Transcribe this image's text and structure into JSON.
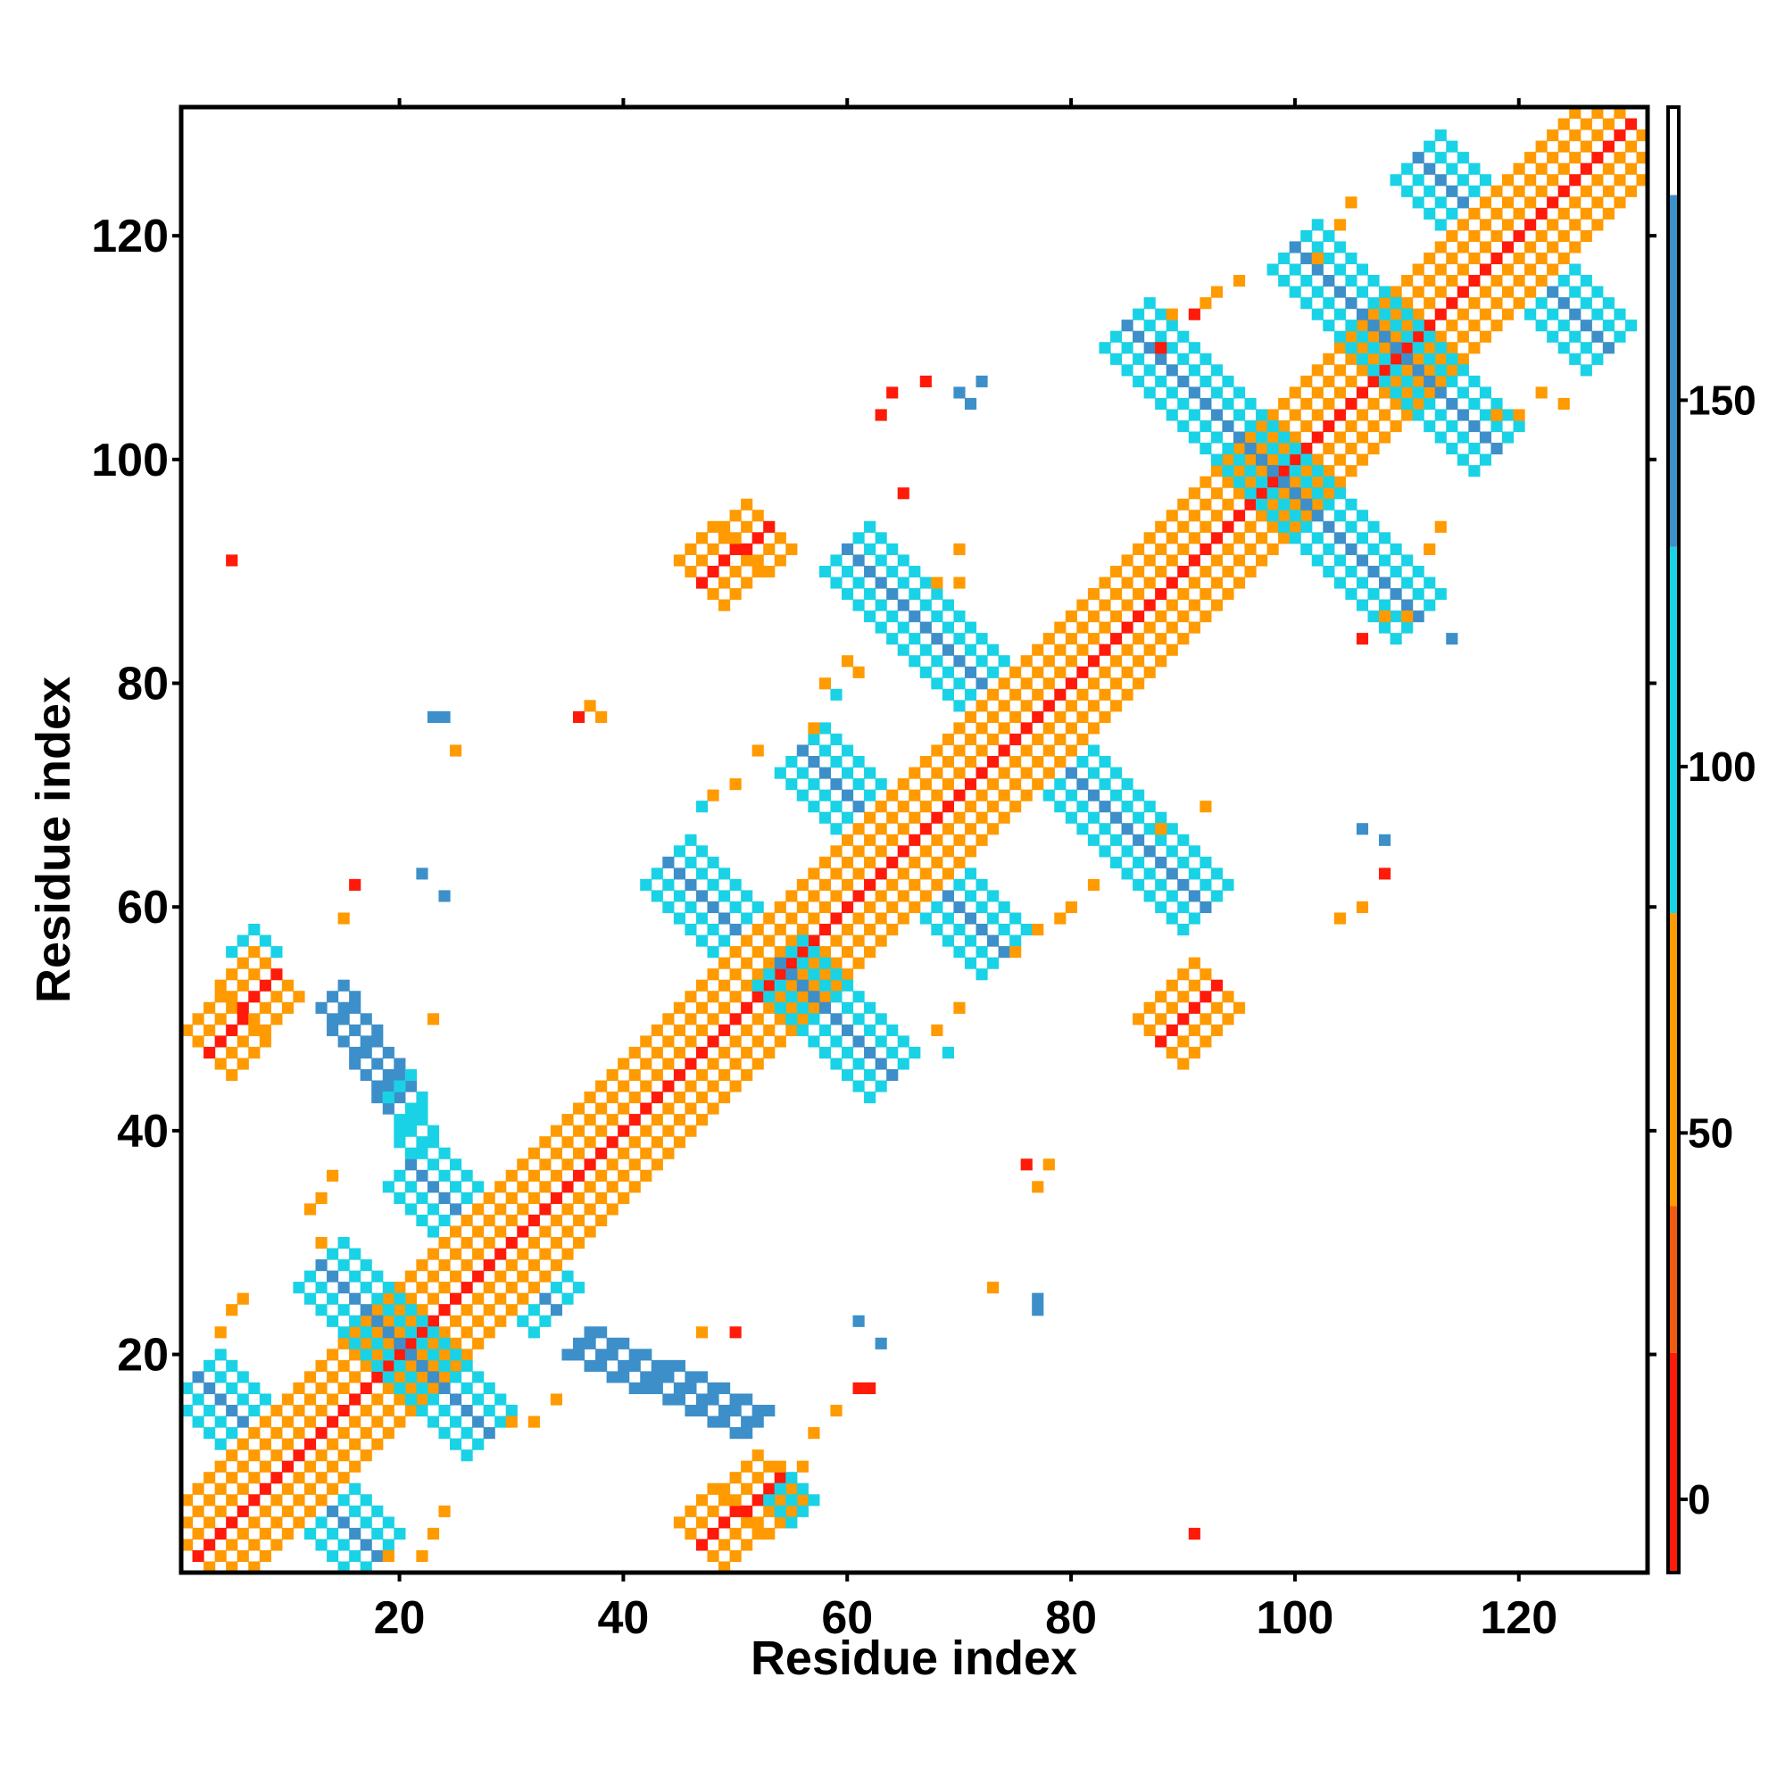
{
  "chart_data": {
    "type": "heatmap",
    "title": "",
    "xlabel": "Residue index",
    "ylabel": "Residue index",
    "xlim": [
      1,
      131
    ],
    "ylim": [
      1,
      131
    ],
    "x_ticks": [
      20,
      40,
      60,
      80,
      100,
      120
    ],
    "y_ticks": [
      20,
      40,
      60,
      80,
      100,
      120
    ],
    "colorbar": {
      "range": [
        -10,
        190
      ],
      "ticks": [
        0,
        50,
        100,
        150
      ],
      "bands": [
        {
          "from": -10,
          "to": 20,
          "color": "#ff1a0a"
        },
        {
          "from": 20,
          "to": 40,
          "color": "#f25a10"
        },
        {
          "from": 40,
          "to": 80,
          "color": "#ff9a00"
        },
        {
          "from": 80,
          "to": 130,
          "color": "#1ad2e6"
        },
        {
          "from": 130,
          "to": 178,
          "color": "#3d8fc9"
        },
        {
          "from": 178,
          "to": 190,
          "color": "#ffffff"
        }
      ]
    },
    "colors": {
      "red": "#ff1a0a",
      "orange": "#f86414",
      "amber": "#ff9a00",
      "cyan": "#1ad2e6",
      "blue": "#4a8fcf"
    },
    "cells": [
      {
        "name": "main-diagonal",
        "x0": 2,
        "y0": 2,
        "x1": 130,
        "y1": 130,
        "w": 3,
        "values": [
          5,
          40,
          65
        ]
      },
      {
        "name": "strand-a1",
        "x0": 2,
        "y0": 18,
        "x1": 18,
        "y1": 2,
        "w": 2,
        "values": [
          140,
          110
        ]
      },
      {
        "name": "strand-a2",
        "x0": 13,
        "y0": 28,
        "x1": 28,
        "y1": 13,
        "w": 2,
        "values": [
          140,
          110
        ]
      },
      {
        "name": "strand-a3",
        "x0": 21,
        "y0": 37,
        "x1": 34,
        "y1": 24,
        "w": 2,
        "values": [
          140,
          110
        ]
      },
      {
        "name": "strand-a4",
        "x0": 14,
        "y0": 52,
        "x1": 20,
        "y1": 43,
        "w": 1,
        "values": [
          145
        ]
      },
      {
        "name": "strand-a5",
        "x0": 44,
        "y0": 64,
        "x1": 64,
        "y1": 45,
        "w": 2,
        "values": [
          140,
          110
        ]
      },
      {
        "name": "strand-a6",
        "x0": 56,
        "y0": 74,
        "x1": 74,
        "y1": 56,
        "w": 2,
        "values": [
          140,
          110
        ]
      },
      {
        "name": "strand-a7",
        "x0": 60,
        "y0": 92,
        "x1": 92,
        "y1": 60,
        "w": 2,
        "values": [
          140,
          110
        ]
      },
      {
        "name": "strand-a8",
        "x0": 85,
        "y0": 112,
        "x1": 111,
        "y1": 86,
        "w": 2,
        "values": [
          140,
          110
        ]
      },
      {
        "name": "strand-a9",
        "x0": 100,
        "y0": 119,
        "x1": 118,
        "y1": 101,
        "w": 2,
        "values": [
          140,
          110
        ]
      },
      {
        "name": "strand-a10",
        "x0": 111,
        "y0": 127,
        "x1": 128,
        "y1": 110,
        "w": 2,
        "values": [
          140,
          110
        ]
      },
      {
        "name": "strand-a11",
        "x0": 20,
        "y0": 44,
        "x1": 22,
        "y1": 38,
        "w": 1,
        "values": [
          110
        ]
      },
      {
        "name": "strand-a12",
        "x0": 36,
        "y0": 21,
        "x1": 52,
        "y1": 14,
        "w": 1,
        "values": [
          140
        ]
      },
      {
        "name": "blob-1",
        "x0": 47,
        "y0": 3,
        "x1": 54,
        "y1": 9,
        "w": 2,
        "values": [
          5,
          40
        ]
      },
      {
        "name": "blob-2",
        "x0": 3,
        "y0": 47,
        "x1": 9,
        "y1": 54,
        "w": 2,
        "values": [
          5,
          40
        ]
      },
      {
        "name": "blob-3",
        "x0": 88,
        "y0": 48,
        "x1": 93,
        "y1": 53,
        "w": 2,
        "values": [
          5,
          40
        ]
      },
      {
        "name": "blob-4",
        "x0": 47,
        "y0": 89,
        "x1": 53,
        "y1": 94,
        "w": 2,
        "values": [
          5,
          40
        ]
      },
      {
        "name": "cross-bump-1",
        "x0": 54,
        "y0": 8,
        "x1": 56,
        "y1": 6,
        "w": 1,
        "values": [
          110
        ]
      },
      {
        "name": "cross-bump-2",
        "x0": 6,
        "y0": 55,
        "x1": 8,
        "y1": 57,
        "w": 1,
        "values": [
          110
        ]
      }
    ],
    "points": [
      [
        5,
        91,
        5
      ],
      [
        23,
        77,
        140
      ],
      [
        24,
        77,
        140
      ],
      [
        25,
        74,
        40
      ],
      [
        36,
        77,
        5
      ],
      [
        37,
        78,
        40
      ],
      [
        38,
        77,
        40
      ],
      [
        16,
        62,
        5
      ],
      [
        15,
        59,
        40
      ],
      [
        22,
        63,
        140
      ],
      [
        24,
        61,
        140
      ],
      [
        23,
        50,
        40
      ],
      [
        14,
        36,
        40
      ],
      [
        13,
        34,
        65
      ],
      [
        12,
        33,
        65
      ],
      [
        13,
        30,
        40
      ],
      [
        5,
        24,
        40
      ],
      [
        6,
        25,
        40
      ],
      [
        4,
        22,
        65
      ],
      [
        30,
        14,
        65
      ],
      [
        32,
        14,
        65
      ],
      [
        34,
        16,
        40
      ],
      [
        24,
        6,
        40
      ],
      [
        23,
        4,
        40
      ],
      [
        19,
        2,
        65
      ],
      [
        22,
        2,
        65
      ],
      [
        50,
        22,
        5
      ],
      [
        47,
        22,
        65
      ],
      [
        61,
        23,
        140
      ],
      [
        63,
        21,
        140
      ],
      [
        61,
        17,
        5
      ],
      [
        62,
        17,
        5
      ],
      [
        59,
        15,
        40
      ],
      [
        57,
        13,
        65
      ],
      [
        54,
        10,
        40
      ],
      [
        56,
        10,
        40
      ],
      [
        67,
        61,
        140
      ],
      [
        73,
        26,
        40
      ],
      [
        77,
        24,
        140
      ],
      [
        77,
        25,
        140
      ],
      [
        78,
        37,
        40
      ],
      [
        77,
        35,
        40
      ],
      [
        76,
        37,
        5
      ],
      [
        75,
        56,
        40
      ],
      [
        77,
        58,
        40
      ],
      [
        70,
        51,
        40
      ],
      [
        68,
        49,
        40
      ],
      [
        69,
        47,
        110
      ],
      [
        68,
        60,
        65
      ],
      [
        82,
        62,
        40
      ],
      [
        80,
        60,
        40
      ],
      [
        79,
        59,
        65
      ],
      [
        88,
        68,
        40
      ],
      [
        88,
        67,
        65
      ],
      [
        92,
        69,
        40
      ],
      [
        91,
        4,
        5
      ],
      [
        48,
        70,
        40
      ],
      [
        50,
        71,
        40
      ],
      [
        47,
        69,
        110
      ],
      [
        52,
        74,
        65
      ],
      [
        57,
        76,
        40
      ],
      [
        58,
        80,
        65
      ],
      [
        60,
        82,
        40
      ],
      [
        61,
        81,
        40
      ],
      [
        59,
        79,
        110
      ],
      [
        65,
        97,
        5
      ],
      [
        63,
        104,
        5
      ],
      [
        64,
        106,
        5
      ],
      [
        67,
        107,
        5
      ],
      [
        70,
        106,
        140
      ],
      [
        72,
        107,
        140
      ],
      [
        71,
        105,
        140
      ],
      [
        68,
        89,
        65
      ],
      [
        70,
        89,
        40
      ],
      [
        70,
        92,
        65
      ],
      [
        88,
        110,
        5
      ],
      [
        89,
        113,
        65
      ],
      [
        86,
        107,
        40
      ],
      [
        85,
        108,
        65
      ],
      [
        91,
        113,
        5
      ],
      [
        93,
        115,
        40
      ],
      [
        95,
        116,
        40
      ],
      [
        92,
        114,
        40
      ],
      [
        104,
        121,
        40
      ],
      [
        105,
        123,
        40
      ],
      [
        102,
        118,
        65
      ],
      [
        106,
        67,
        140
      ],
      [
        108,
        66,
        140
      ],
      [
        108,
        63,
        5
      ],
      [
        106,
        60,
        40
      ],
      [
        104,
        59,
        40
      ],
      [
        106,
        84,
        5
      ],
      [
        108,
        86,
        65
      ],
      [
        110,
        86,
        65
      ],
      [
        112,
        92,
        40
      ],
      [
        113,
        94,
        65
      ],
      [
        114,
        84,
        140
      ],
      [
        118,
        104,
        40
      ],
      [
        120,
        104,
        40
      ],
      [
        122,
        106,
        40
      ],
      [
        124,
        105,
        40
      ]
    ]
  }
}
